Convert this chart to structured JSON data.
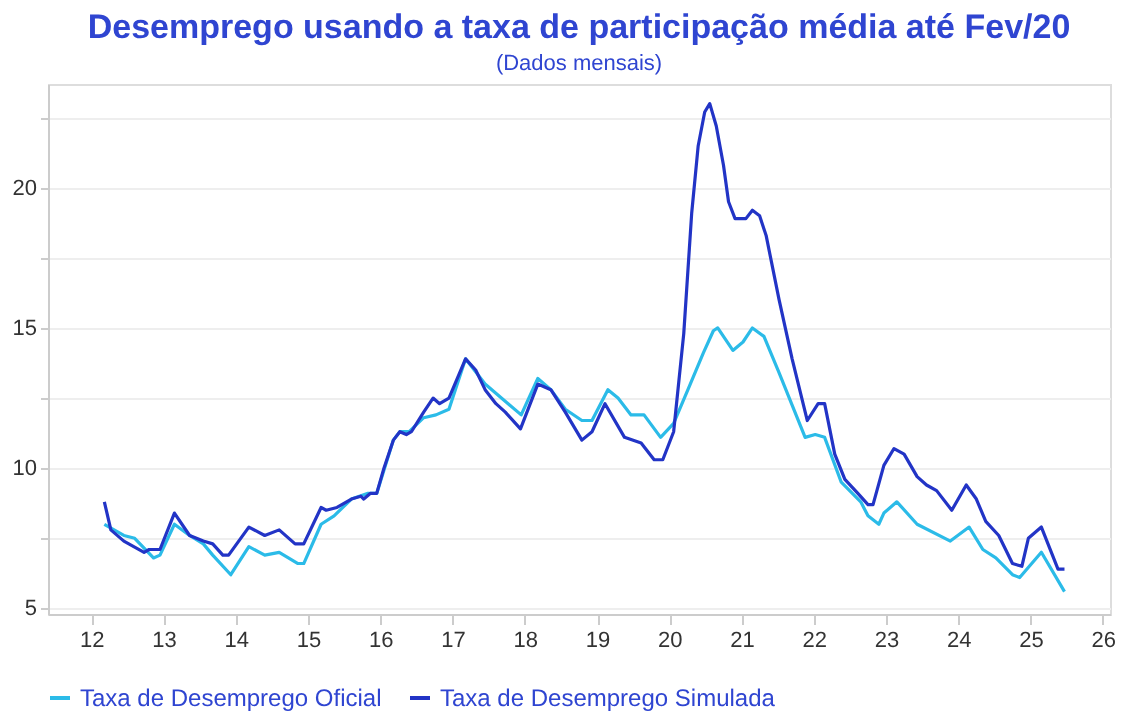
{
  "chart_data": {
    "type": "line",
    "title": "Desemprego usando a taxa de participação média até Fev/20",
    "subtitle": "(Dados mensais)",
    "xlim": [
      11.4,
      26.1
    ],
    "xticks": [
      12,
      13,
      14,
      15,
      16,
      17,
      18,
      19,
      20,
      21,
      22,
      23,
      24,
      25,
      26
    ],
    "ylim": [
      4.8,
      23.7
    ],
    "yticks": [
      5,
      {
        "value": 7.5,
        "label": null
      },
      10,
      {
        "value": 12.5,
        "label": null
      },
      15,
      {
        "value": 17.5,
        "label": null
      },
      20,
      {
        "value": 22.5,
        "label": null
      }
    ],
    "grid": "y",
    "legend": "bottom",
    "marker": "none",
    "line_style": "solid",
    "series": [
      {
        "name": "Taxa de Desemprego Oficial",
        "color": "#2bbbe8",
        "x": [
          12.18,
          12.45,
          12.6,
          12.86,
          12.95,
          13.15,
          13.36,
          13.55,
          13.68,
          13.93,
          14.18,
          14.4,
          14.6,
          14.86,
          14.94,
          15.18,
          15.36,
          15.6,
          15.82,
          15.95,
          16.18,
          16.27,
          16.4,
          16.6,
          16.77,
          16.95,
          17.18,
          17.45,
          17.95,
          18.18,
          18.36,
          18.56,
          18.79,
          18.93,
          19.15,
          19.29,
          19.47,
          19.65,
          19.88,
          20.06,
          20.29,
          20.47,
          20.61,
          20.67,
          20.88,
          21.02,
          21.15,
          21.31,
          21.52,
          21.88,
          22.02,
          22.15,
          22.38,
          22.65,
          22.75,
          22.9,
          22.97,
          23.15,
          23.43,
          23.89,
          24.15,
          24.34,
          24.52,
          24.75,
          24.85,
          25.15,
          25.47
        ],
        "values": [
          8.0,
          7.6,
          7.5,
          6.8,
          6.9,
          8.0,
          7.6,
          7.3,
          6.9,
          6.2,
          7.2,
          6.9,
          7.0,
          6.6,
          6.6,
          8.0,
          8.3,
          8.9,
          9.1,
          9.1,
          11.0,
          11.3,
          11.3,
          11.8,
          11.9,
          12.1,
          13.9,
          13.0,
          11.9,
          13.2,
          12.8,
          12.1,
          11.7,
          11.7,
          12.8,
          12.5,
          11.9,
          11.9,
          11.1,
          11.6,
          13.0,
          14.1,
          14.9,
          15.0,
          14.2,
          14.5,
          15.0,
          14.7,
          13.4,
          11.1,
          11.2,
          11.1,
          9.5,
          8.8,
          8.3,
          8.0,
          8.4,
          8.8,
          8.0,
          7.4,
          7.9,
          7.1,
          6.8,
          6.2,
          6.1,
          7.0,
          5.6
        ]
      },
      {
        "name": "Taxa de Desemprego Simulada",
        "color": "#2234c6",
        "x": [
          12.18,
          12.27,
          12.45,
          12.73,
          12.8,
          12.95,
          13.15,
          13.36,
          13.55,
          13.68,
          13.82,
          13.9,
          14.18,
          14.4,
          14.6,
          14.82,
          14.94,
          15.18,
          15.25,
          15.4,
          15.6,
          15.73,
          15.77,
          15.86,
          15.95,
          16.05,
          16.18,
          16.27,
          16.36,
          16.43,
          16.6,
          16.73,
          16.82,
          16.95,
          17.18,
          17.32,
          17.45,
          17.6,
          17.73,
          17.94,
          18.18,
          18.36,
          18.56,
          18.79,
          18.93,
          19.11,
          19.38,
          19.61,
          19.79,
          19.91,
          20.06,
          20.2,
          20.31,
          20.4,
          20.49,
          20.56,
          20.65,
          20.75,
          20.82,
          20.91,
          21.06,
          21.15,
          21.25,
          21.34,
          21.52,
          21.7,
          21.91,
          22.06,
          22.15,
          22.29,
          22.43,
          22.61,
          22.75,
          22.82,
          22.97,
          23.11,
          23.25,
          23.43,
          23.56,
          23.7,
          23.91,
          24.11,
          24.25,
          24.38,
          24.56,
          24.75,
          24.88,
          24.97,
          25.15,
          25.38,
          25.47
        ],
        "values": [
          8.8,
          7.8,
          7.4,
          7.0,
          7.1,
          7.1,
          8.4,
          7.6,
          7.4,
          7.3,
          6.9,
          6.9,
          7.9,
          7.6,
          7.8,
          7.3,
          7.3,
          8.6,
          8.5,
          8.6,
          8.9,
          9.0,
          8.9,
          9.1,
          9.1,
          10.0,
          11.0,
          11.3,
          11.2,
          11.3,
          12.0,
          12.5,
          12.3,
          12.5,
          13.9,
          13.5,
          12.8,
          12.3,
          12.0,
          11.4,
          13.0,
          12.8,
          12.0,
          11.0,
          11.3,
          12.3,
          11.1,
          10.9,
          10.3,
          10.3,
          11.3,
          14.8,
          19.1,
          21.5,
          22.7,
          23.0,
          22.2,
          20.8,
          19.5,
          18.9,
          18.9,
          19.2,
          19.0,
          18.3,
          16.0,
          13.9,
          11.7,
          12.3,
          12.3,
          10.5,
          9.6,
          9.1,
          8.7,
          8.7,
          10.1,
          10.7,
          10.5,
          9.7,
          9.4,
          9.2,
          8.5,
          9.4,
          8.9,
          8.1,
          7.6,
          6.6,
          6.5,
          7.5,
          7.9,
          6.4,
          6.4
        ]
      }
    ]
  }
}
